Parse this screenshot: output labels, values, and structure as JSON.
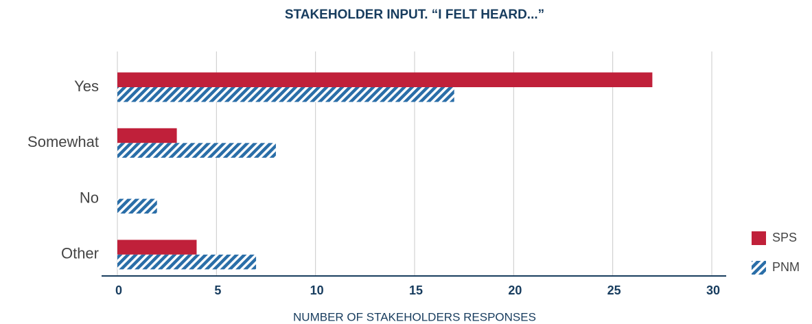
{
  "chart_data": {
    "type": "barh",
    "title": "STAKEHOLDER INPUT. “I FELT HEARD...”",
    "x_label": "NUMBER OF STAKEHOLDERS RESPONSES",
    "categories": [
      "Yes",
      "Somewhat",
      "No",
      "Other"
    ],
    "series": [
      {
        "name": "SPS",
        "color": "#c0203a",
        "pattern": "solid",
        "values": [
          27,
          3,
          0,
          4
        ]
      },
      {
        "name": "PNM",
        "color": "#2a6ea8",
        "pattern": "hatch",
        "values": [
          17,
          8,
          2,
          7
        ]
      }
    ],
    "xlim": [
      0,
      30
    ],
    "xticks": [
      0,
      5,
      10,
      15,
      20,
      25,
      30
    ],
    "grid": true,
    "legend": "right"
  }
}
